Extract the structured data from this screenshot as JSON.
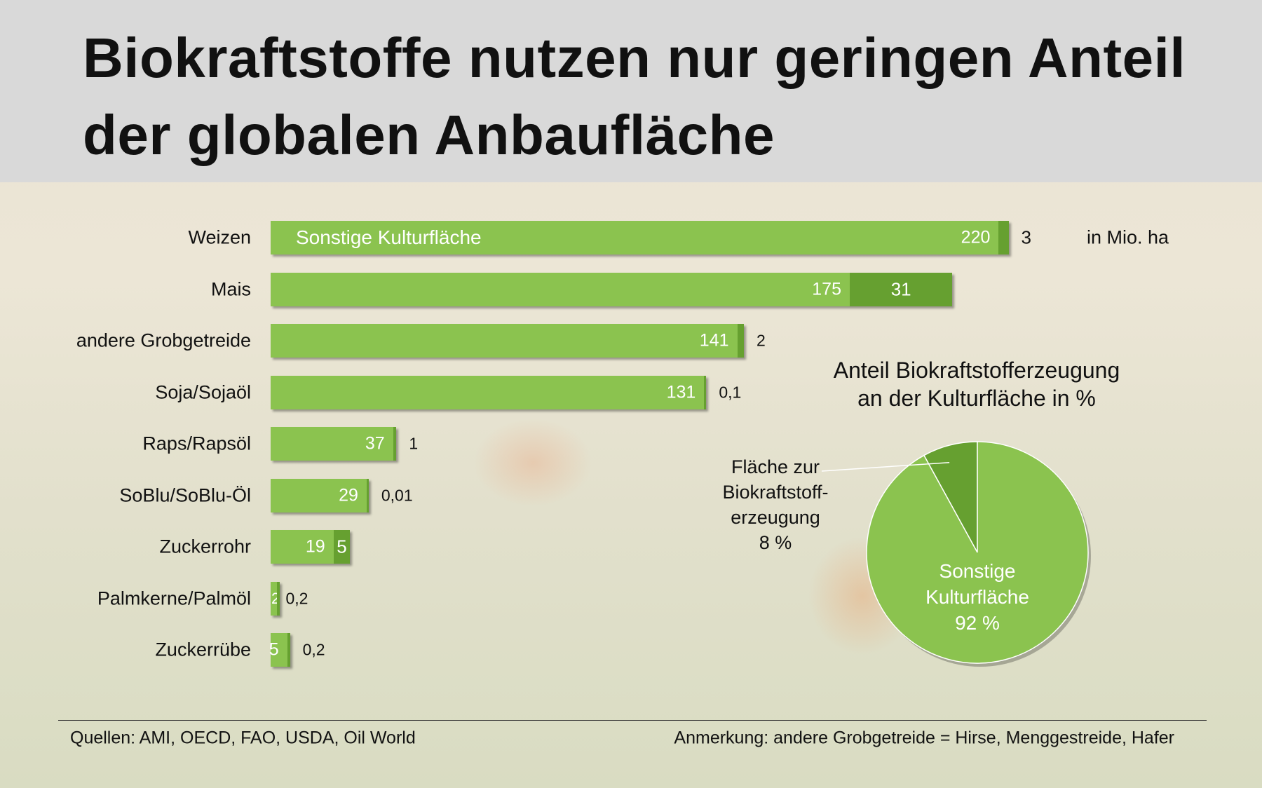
{
  "title_lines": [
    "Biokraftstoffe nutzen nur geringen Anteil",
    "der globalen Anbaufläche"
  ],
  "colors": {
    "sonstige": "#8bc34f",
    "biokraftstoff": "#66a030",
    "header_bg": "#d9d9d9"
  },
  "chart_data": [
    {
      "type": "bar",
      "orientation": "horizontal",
      "stacked": true,
      "unit_label": "in Mio. ha",
      "inline_label": "Sonstige Kulturfläche",
      "categories": [
        "Weizen",
        "Mais",
        "andere Grobgetreide",
        "Soja/Sojaöl",
        "Raps/Rapsöl",
        "SoBlu/SoBlu-Öl",
        "Zuckerrohr",
        "Palmkerne/Palmöl",
        "Zuckerrübe"
      ],
      "series": [
        {
          "name": "Sonstige Kulturfläche",
          "values": [
            220,
            175,
            141,
            131,
            37,
            29,
            19,
            2,
            5
          ],
          "labels": [
            "220",
            "175",
            "141",
            "131",
            "37",
            "29",
            "19",
            "2",
            "5"
          ]
        },
        {
          "values": [
            3,
            31,
            2,
            0.1,
            1,
            0.01,
            5,
            0.2,
            0.2
          ],
          "labels": [
            "3",
            "31",
            "2",
            "0,1",
            "1",
            "0,01",
            "5",
            "0,2",
            "0,2"
          ]
        }
      ]
    },
    {
      "type": "pie",
      "title_lines": [
        "Anteil Biokraftstofferzeugung",
        "an der Kulturfläche in %"
      ],
      "slices": [
        {
          "label_lines": [
            "Fläche zur",
            "Biokraftstoff-",
            "erzeugung",
            "8 %"
          ],
          "value": 8
        },
        {
          "label_lines": [
            "Sonstige",
            "Kulturfläche",
            "92 %"
          ],
          "value": 92
        }
      ]
    }
  ],
  "footer": {
    "sources": "Quellen: AMI, OECD, FAO, USDA, Oil World",
    "note": "Anmerkung: andere Grobgetreide = Hirse, Menggestreide, Hafer"
  }
}
